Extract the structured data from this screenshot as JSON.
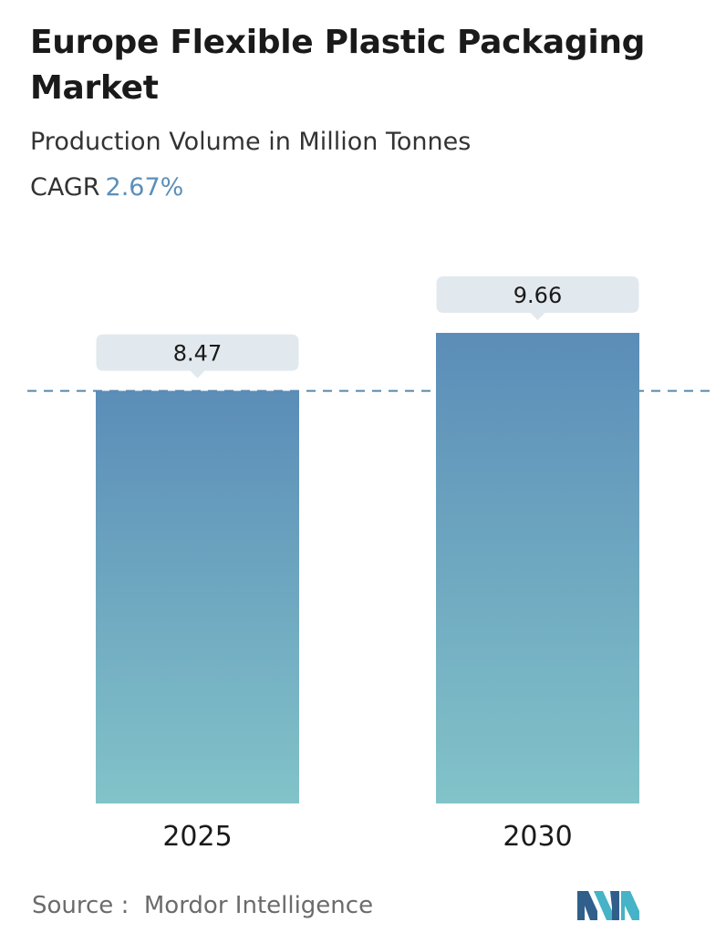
{
  "header": {
    "title": "Europe Flexible Plastic Packaging Market",
    "subtitle": "Production Volume in Million Tonnes",
    "cagr_label": "CAGR",
    "cagr_value": "2.67%"
  },
  "footer": {
    "source_label": "Source :",
    "source_name": "Mordor Intelligence",
    "logo_icon": "mordor-intelligence-logo-icon"
  },
  "colors": {
    "bar_top": "#5b8db8",
    "bar_bottom": "#82c3c9",
    "label_bg": "#e2e9ee",
    "dashed_line": "#5a87a8",
    "accent": "#5b8fb9"
  },
  "chart_data": {
    "type": "bar",
    "categories": [
      "2025",
      "2030"
    ],
    "values": [
      8.47,
      9.66
    ],
    "value_labels": [
      "8.47",
      "9.66"
    ],
    "title": "Europe Flexible Plastic Packaging Market",
    "subtitle": "Production Volume in Million Tonnes",
    "xlabel": "",
    "ylabel": "",
    "ylim": [
      0,
      9.66
    ],
    "grid": false,
    "legend": "none",
    "reference_line": 8.47
  }
}
